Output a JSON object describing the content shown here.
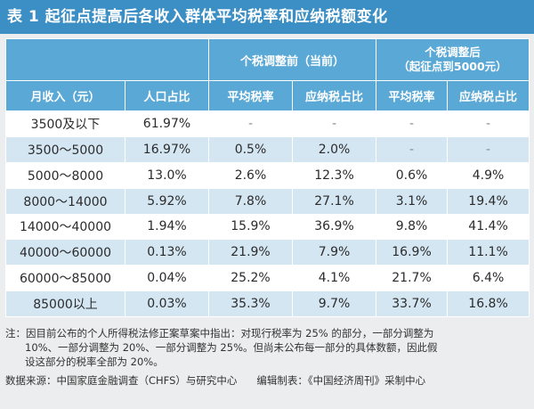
{
  "title": "表 1  起征点提高后各收入群体平均税率和应纳税额变化",
  "headers": {
    "blank": "",
    "group_before": "个税调整前（当前）",
    "group_after_line1": "个税调整后",
    "group_after_line2": "（起征点到5000元）",
    "income": "月收入（元）",
    "population": "人口占比",
    "avg_rate_before": "平均税率",
    "tax_share_before": "应纳税占比",
    "avg_rate_after": "平均税率",
    "tax_share_after": "应纳税占比"
  },
  "rows": [
    {
      "income": "3500及以下",
      "population": "61.97%",
      "avg_before": "-",
      "share_before": "-",
      "avg_after": "-",
      "share_after": "-"
    },
    {
      "income": "3500～5000",
      "population": "16.97%",
      "avg_before": "0.5%",
      "share_before": "2.0%",
      "avg_after": "-",
      "share_after": "-"
    },
    {
      "income": "5000～8000",
      "population": "13.0%",
      "avg_before": "2.6%",
      "share_before": "12.3%",
      "avg_after": "0.6%",
      "share_after": "4.9%"
    },
    {
      "income": "8000～14000",
      "population": "5.92%",
      "avg_before": "7.8%",
      "share_before": "27.1%",
      "avg_after": "3.1%",
      "share_after": "19.4%"
    },
    {
      "income": "14000～40000",
      "population": "1.94%",
      "avg_before": "15.9%",
      "share_before": "36.9%",
      "avg_after": "9.8%",
      "share_after": "41.4%"
    },
    {
      "income": "40000～60000",
      "population": "0.13%",
      "avg_before": "21.9%",
      "share_before": "7.9%",
      "avg_after": "16.9%",
      "share_after": "11.1%"
    },
    {
      "income": "60000～85000",
      "population": "0.04%",
      "avg_before": "25.2%",
      "share_before": "4.1%",
      "avg_after": "21.7%",
      "share_after": "6.4%"
    },
    {
      "income": "85000以上",
      "population": "0.03%",
      "avg_before": "35.3%",
      "share_before": "9.7%",
      "avg_after": "33.7%",
      "share_after": "16.8%"
    }
  ],
  "notes": {
    "line1": "注：因目前公布的个人所得税法修正案草案中指出：对现行税率为 25% 的部分，一部分调整为",
    "line2": "10%、一部分调整为 20%、一部分调整为 25%。但尚未公布每一部分的具体数额，因此假",
    "line3": "设这部分的税率全部为 20%。",
    "source": "数据来源：中国家庭金融调查（CHFS）与研究中心",
    "editor": "编辑制表：《中国经济周刊》采制中心"
  }
}
